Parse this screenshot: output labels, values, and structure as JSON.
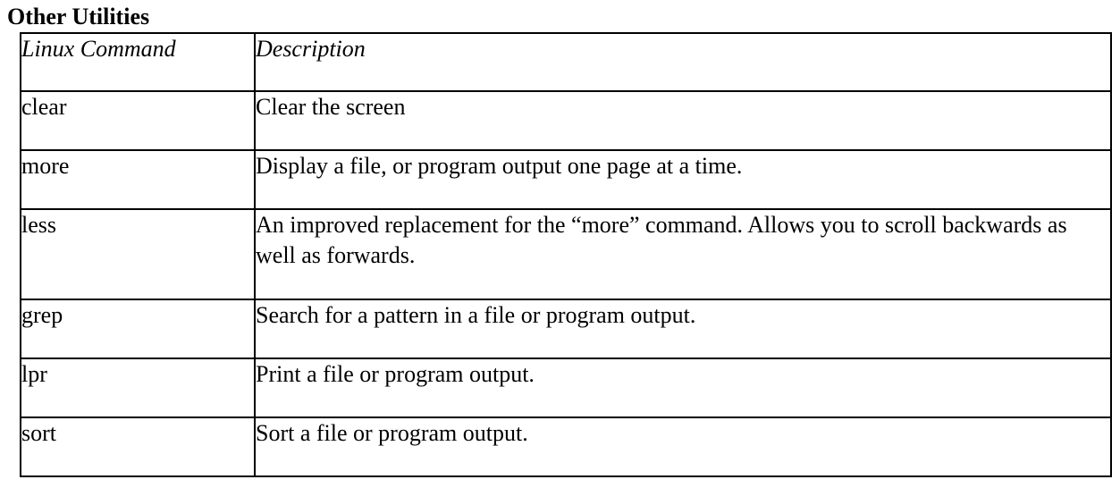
{
  "section": {
    "title": "Other Utilities"
  },
  "table": {
    "headers": {
      "command": "Linux Command",
      "description": "Description"
    },
    "rows": [
      {
        "command": "clear",
        "description": "Clear the screen"
      },
      {
        "command": "more",
        "description": "Display a file, or program output one page at a time."
      },
      {
        "command": "less",
        "description": "An improved replacement for the “more” command. Allows you to scroll backwards as well as forwards."
      },
      {
        "command": "grep",
        "description": "Search for a pattern in a file or program output."
      },
      {
        "command": "lpr",
        "description": "Print a file or program output."
      },
      {
        "command": "sort",
        "description": "Sort a file or program output."
      }
    ]
  }
}
